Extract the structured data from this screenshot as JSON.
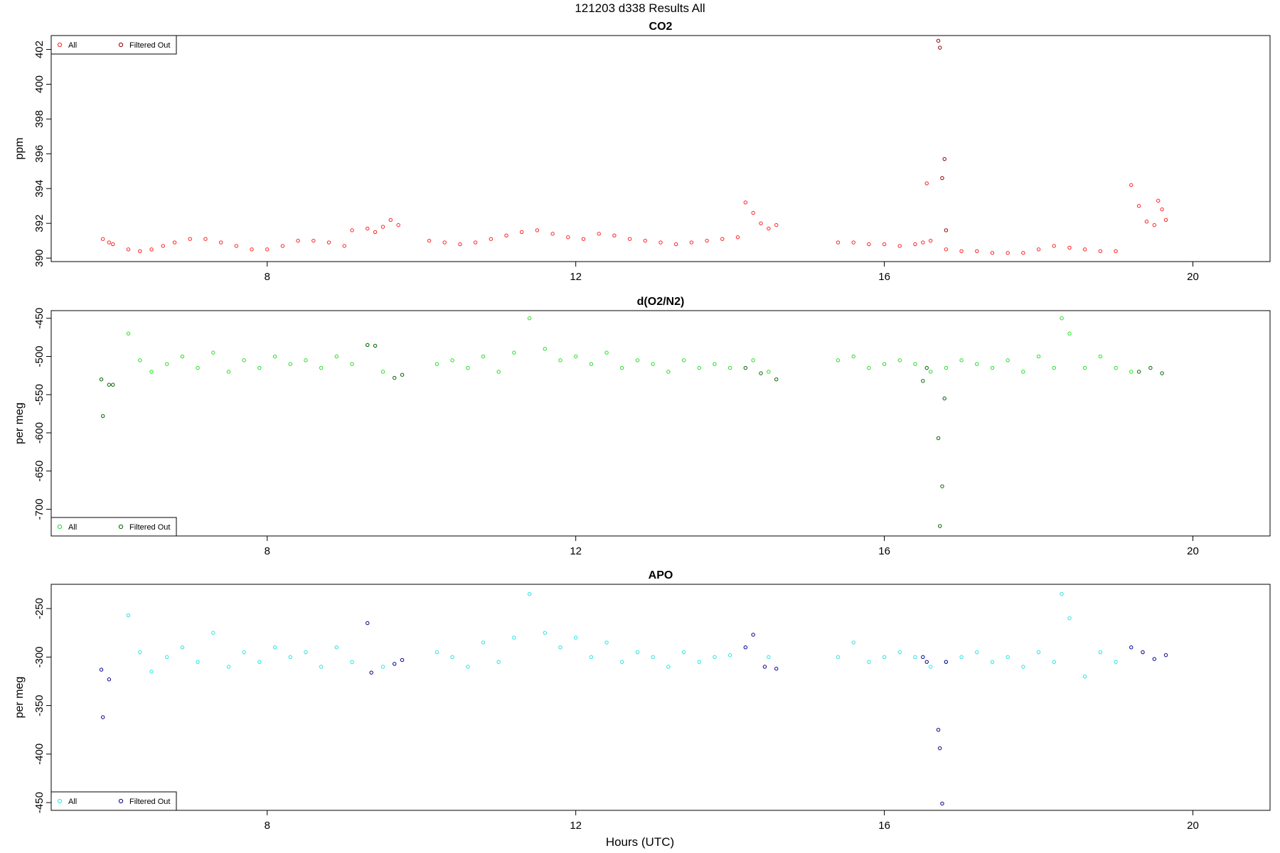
{
  "title": "121203   d338   Results All",
  "xlabel": "Hours (UTC)",
  "chart_data": [
    {
      "type": "scatter",
      "title": "CO2",
      "ylabel": "ppm",
      "xlim": [
        5.2,
        21.0
      ],
      "ylim": [
        389.8,
        402.8
      ],
      "x_ticks": [
        8,
        12,
        16,
        20
      ],
      "y_ticks": [
        390,
        392,
        394,
        396,
        398,
        400,
        402
      ],
      "legend": {
        "position": "top-left",
        "entries": [
          "All",
          "Filtered Out"
        ]
      },
      "colors": {
        "all": "#ff2020",
        "filtered": "#8b0000"
      },
      "series": [
        {
          "name": "All",
          "x": [
            5.87,
            5.95,
            6.0,
            6.2,
            6.35,
            6.5,
            6.65,
            6.8,
            7.0,
            7.2,
            7.4,
            7.6,
            7.8,
            8.0,
            8.2,
            8.4,
            8.6,
            8.8,
            9.0,
            9.1,
            9.3,
            9.4,
            9.5,
            9.6,
            9.7,
            10.1,
            10.3,
            10.5,
            10.7,
            10.9,
            11.1,
            11.3,
            11.5,
            11.7,
            11.9,
            12.1,
            12.3,
            12.5,
            12.7,
            12.9,
            13.1,
            13.3,
            13.5,
            13.7,
            13.9,
            14.1,
            14.2,
            14.3,
            14.4,
            14.5,
            14.6,
            15.4,
            15.6,
            15.8,
            16.0,
            16.2,
            16.4,
            16.5,
            16.55,
            16.6,
            16.8,
            17.0,
            17.2,
            17.4,
            17.6,
            17.8,
            18.0,
            18.2,
            18.4,
            18.6,
            18.8,
            19.0,
            19.2,
            19.3,
            19.4,
            19.5,
            19.55,
            19.6,
            19.65
          ],
          "y": [
            391.1,
            390.9,
            390.8,
            390.5,
            390.4,
            390.5,
            390.7,
            390.9,
            391.1,
            391.1,
            390.9,
            390.7,
            390.5,
            390.5,
            390.7,
            391.0,
            391.0,
            390.9,
            390.7,
            391.6,
            391.7,
            391.5,
            391.8,
            392.2,
            391.9,
            391.0,
            390.9,
            390.8,
            390.9,
            391.1,
            391.3,
            391.5,
            391.6,
            391.4,
            391.2,
            391.1,
            391.4,
            391.3,
            391.1,
            391.0,
            390.9,
            390.8,
            390.9,
            391.0,
            391.1,
            391.2,
            393.2,
            392.6,
            392.0,
            391.7,
            391.9,
            390.9,
            390.9,
            390.8,
            390.8,
            390.7,
            390.8,
            390.9,
            394.3,
            391.0,
            390.5,
            390.4,
            390.4,
            390.3,
            390.3,
            390.3,
            390.5,
            390.7,
            390.6,
            390.5,
            390.4,
            390.4,
            394.2,
            393.0,
            392.1,
            391.9,
            393.3,
            392.8,
            392.2
          ]
        },
        {
          "name": "Filtered Out",
          "x": [
            16.7,
            16.72,
            16.75,
            16.78,
            16.8
          ],
          "y": [
            402.5,
            402.1,
            394.6,
            395.7,
            391.6
          ]
        }
      ]
    },
    {
      "type": "scatter",
      "title": "d(O2/N2)",
      "ylabel": "per meg",
      "xlim": [
        5.2,
        21.0
      ],
      "ylim": [
        -735,
        -440
      ],
      "x_ticks": [
        8,
        12,
        16,
        20
      ],
      "y_ticks": [
        -450,
        -500,
        -550,
        -600,
        -650,
        -700
      ],
      "legend": {
        "position": "bottom-left",
        "entries": [
          "All",
          "Filtered Out"
        ]
      },
      "colors": {
        "all": "#22dd22",
        "filtered": "#006400"
      },
      "series": [
        {
          "name": "All",
          "x": [
            6.2,
            6.35,
            6.5,
            6.7,
            6.9,
            7.1,
            7.3,
            7.5,
            7.7,
            7.9,
            8.1,
            8.3,
            8.5,
            8.7,
            8.9,
            9.1,
            9.3,
            9.5,
            10.2,
            10.4,
            10.6,
            10.8,
            11.0,
            11.2,
            11.4,
            11.6,
            11.8,
            12.0,
            12.2,
            12.4,
            12.6,
            12.8,
            13.0,
            13.2,
            13.4,
            13.6,
            13.8,
            14.0,
            14.3,
            14.5,
            15.4,
            15.6,
            15.8,
            16.0,
            16.2,
            16.4,
            16.6,
            16.8,
            17.0,
            17.2,
            17.4,
            17.6,
            17.8,
            18.0,
            18.2,
            18.3,
            18.4,
            18.6,
            18.8,
            19.0,
            19.2
          ],
          "y": [
            -470,
            -505,
            -520,
            -510,
            -500,
            -515,
            -495,
            -520,
            -505,
            -515,
            -500,
            -510,
            -505,
            -515,
            -500,
            -510,
            -485,
            -520,
            -510,
            -505,
            -515,
            -500,
            -520,
            -495,
            -450,
            -490,
            -505,
            -500,
            -510,
            -495,
            -515,
            -505,
            -510,
            -520,
            -505,
            -515,
            -510,
            -515,
            -505,
            -520,
            -505,
            -500,
            -515,
            -510,
            -505,
            -510,
            -520,
            -515,
            -505,
            -510,
            -515,
            -505,
            -520,
            -500,
            -515,
            -450,
            -470,
            -515,
            -500,
            -515,
            -520
          ]
        },
        {
          "name": "Filtered Out",
          "x": [
            5.85,
            5.87,
            5.95,
            6.0,
            9.3,
            9.4,
            9.65,
            9.75,
            14.2,
            14.4,
            14.6,
            16.5,
            16.55,
            16.7,
            16.72,
            16.75,
            16.78,
            19.3,
            19.45,
            19.6
          ],
          "y": [
            -530,
            -578,
            -537,
            -537,
            -485,
            -486,
            -528,
            -524,
            -515,
            -522,
            -530,
            -532,
            -515,
            -607,
            -722,
            -670,
            -555,
            -520,
            -515,
            -522
          ]
        }
      ]
    },
    {
      "type": "scatter",
      "title": "APO",
      "ylabel": "per meg",
      "xlim": [
        5.2,
        21.0
      ],
      "ylim": [
        -458,
        -225
      ],
      "x_ticks": [
        8,
        12,
        16,
        20
      ],
      "y_ticks": [
        -250,
        -300,
        -350,
        -400,
        -450
      ],
      "legend": {
        "position": "bottom-left",
        "entries": [
          "All",
          "Filtered Out"
        ]
      },
      "colors": {
        "all": "#22e5e5",
        "filtered": "#00008b"
      },
      "series": [
        {
          "name": "All",
          "x": [
            6.2,
            6.35,
            6.5,
            6.7,
            6.9,
            7.1,
            7.3,
            7.5,
            7.7,
            7.9,
            8.1,
            8.3,
            8.5,
            8.7,
            8.9,
            9.1,
            9.5,
            10.2,
            10.4,
            10.6,
            10.8,
            11.0,
            11.2,
            11.4,
            11.6,
            11.8,
            12.0,
            12.2,
            12.4,
            12.6,
            12.8,
            13.0,
            13.2,
            13.4,
            13.6,
            13.8,
            14.0,
            14.5,
            15.4,
            15.6,
            15.8,
            16.0,
            16.2,
            16.4,
            16.6,
            16.8,
            17.0,
            17.2,
            17.4,
            17.6,
            17.8,
            18.0,
            18.2,
            18.3,
            18.4,
            18.6,
            18.8,
            19.0
          ],
          "y": [
            -257,
            -295,
            -315,
            -300,
            -290,
            -305,
            -275,
            -310,
            -295,
            -305,
            -290,
            -300,
            -295,
            -310,
            -290,
            -305,
            -310,
            -295,
            -300,
            -310,
            -285,
            -305,
            -280,
            -235,
            -275,
            -290,
            -280,
            -300,
            -285,
            -305,
            -295,
            -300,
            -310,
            -295,
            -305,
            -300,
            -298,
            -300,
            -300,
            -285,
            -305,
            -300,
            -295,
            -300,
            -310,
            -305,
            -300,
            -295,
            -305,
            -300,
            -310,
            -295,
            -305,
            -235,
            -260,
            -320,
            -295,
            -305
          ]
        },
        {
          "name": "Filtered Out",
          "x": [
            5.85,
            5.87,
            5.95,
            9.3,
            9.35,
            9.65,
            9.75,
            14.2,
            14.3,
            14.45,
            14.6,
            16.5,
            16.55,
            16.7,
            16.72,
            16.75,
            16.8,
            19.2,
            19.35,
            19.5,
            19.65
          ],
          "y": [
            -313,
            -362,
            -323,
            -265,
            -316,
            -307,
            -303,
            -290,
            -277,
            -310,
            -312,
            -300,
            -305,
            -375,
            -394,
            -451,
            -305,
            -290,
            -295,
            -302,
            -298
          ]
        }
      ]
    }
  ]
}
